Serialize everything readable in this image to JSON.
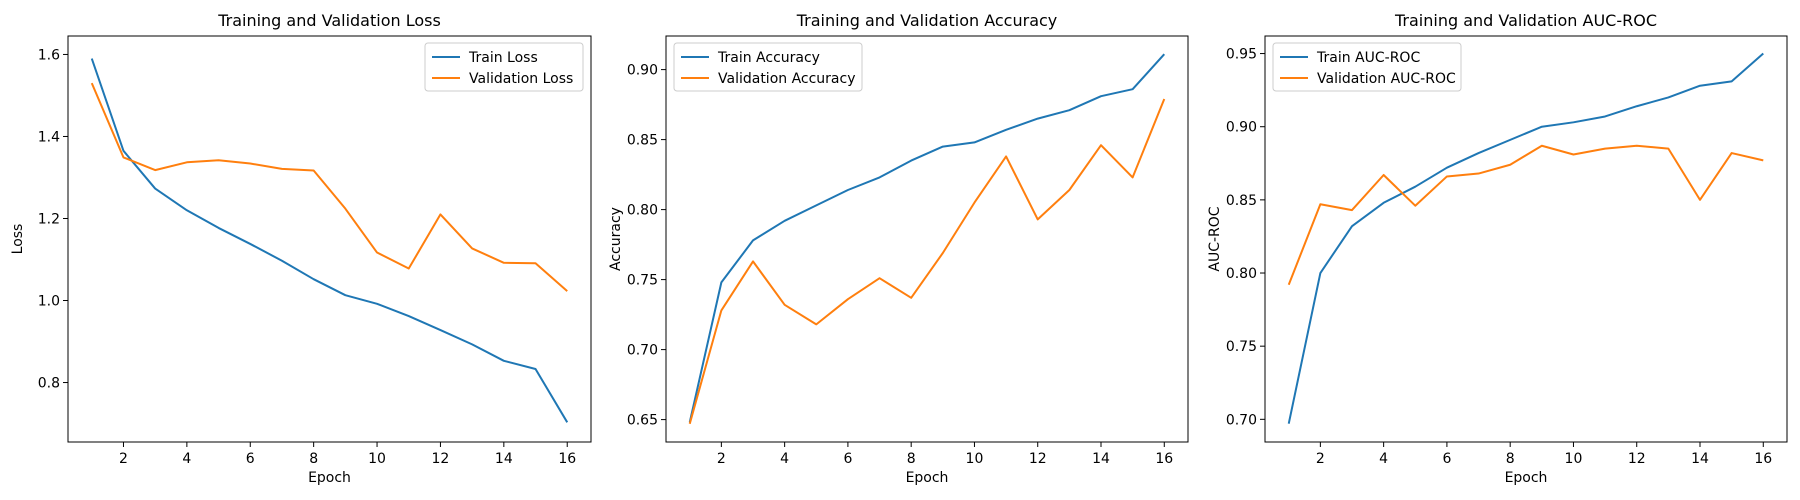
{
  "chart_data": [
    {
      "type": "line",
      "title": "Training and Validation Loss",
      "xlabel": "Epoch",
      "ylabel": "Loss",
      "x": [
        1,
        2,
        3,
        4,
        5,
        6,
        7,
        8,
        9,
        10,
        11,
        12,
        13,
        14,
        15,
        16
      ],
      "xlim": [
        0.25,
        16.75
      ],
      "ylim": [
        0.655,
        1.645
      ],
      "xticks": [
        2,
        4,
        6,
        8,
        10,
        12,
        14,
        16
      ],
      "yticks": [
        0.8,
        1.0,
        1.2,
        1.4,
        1.6
      ],
      "ytick_decimals": 1,
      "legend": "upper right",
      "series": [
        {
          "name": "Train Loss",
          "color": "#1f77b4",
          "values": [
            1.59,
            1.365,
            1.273,
            1.22,
            1.177,
            1.138,
            1.097,
            1.052,
            1.013,
            0.992,
            0.962,
            0.928,
            0.893,
            0.853,
            0.833,
            0.703
          ]
        },
        {
          "name": "Validation Loss",
          "color": "#ff7f0e",
          "values": [
            1.53,
            1.349,
            1.318,
            1.337,
            1.342,
            1.334,
            1.321,
            1.317,
            1.224,
            1.117,
            1.078,
            1.21,
            1.127,
            1.092,
            1.091,
            1.023
          ]
        }
      ]
    },
    {
      "type": "line",
      "title": "Training and Validation Accuracy",
      "xlabel": "Epoch",
      "ylabel": "Accuracy",
      "x": [
        1,
        2,
        3,
        4,
        5,
        6,
        7,
        8,
        9,
        10,
        11,
        12,
        13,
        14,
        15,
        16
      ],
      "xlim": [
        0.25,
        16.75
      ],
      "ylim": [
        0.634,
        0.924
      ],
      "xticks": [
        2,
        4,
        6,
        8,
        10,
        12,
        14,
        16
      ],
      "yticks": [
        0.65,
        0.7,
        0.75,
        0.8,
        0.85,
        0.9
      ],
      "ytick_decimals": 2,
      "legend": "upper left",
      "series": [
        {
          "name": "Train Accuracy",
          "color": "#1f77b4",
          "values": [
            0.648,
            0.748,
            0.778,
            0.792,
            0.803,
            0.814,
            0.823,
            0.835,
            0.845,
            0.848,
            0.857,
            0.865,
            0.871,
            0.881,
            0.886,
            0.911
          ]
        },
        {
          "name": "Validation Accuracy",
          "color": "#ff7f0e",
          "values": [
            0.647,
            0.728,
            0.763,
            0.732,
            0.718,
            0.736,
            0.751,
            0.737,
            0.769,
            0.805,
            0.838,
            0.793,
            0.814,
            0.846,
            0.823,
            0.879
          ]
        }
      ]
    },
    {
      "type": "line",
      "title": "Training and Validation AUC-ROC",
      "xlabel": "Epoch",
      "ylabel": "AUC-ROC",
      "x": [
        1,
        2,
        3,
        4,
        5,
        6,
        7,
        8,
        9,
        10,
        11,
        12,
        13,
        14,
        15,
        16
      ],
      "xlim": [
        0.25,
        16.75
      ],
      "ylim": [
        0.6845,
        0.962
      ],
      "xticks": [
        2,
        4,
        6,
        8,
        10,
        12,
        14,
        16
      ],
      "yticks": [
        0.7,
        0.75,
        0.8,
        0.85,
        0.9,
        0.95
      ],
      "ytick_decimals": 2,
      "legend": "upper left",
      "series": [
        {
          "name": "Train AUC-ROC",
          "color": "#1f77b4",
          "values": [
            0.697,
            0.8,
            0.832,
            0.848,
            0.859,
            0.872,
            0.882,
            0.891,
            0.9,
            0.903,
            0.907,
            0.914,
            0.92,
            0.928,
            0.931,
            0.95
          ]
        },
        {
          "name": "Validation AUC-ROC",
          "color": "#ff7f0e",
          "values": [
            0.792,
            0.847,
            0.843,
            0.867,
            0.846,
            0.866,
            0.868,
            0.874,
            0.887,
            0.881,
            0.885,
            0.887,
            0.885,
            0.85,
            0.882,
            0.877
          ]
        }
      ]
    }
  ]
}
